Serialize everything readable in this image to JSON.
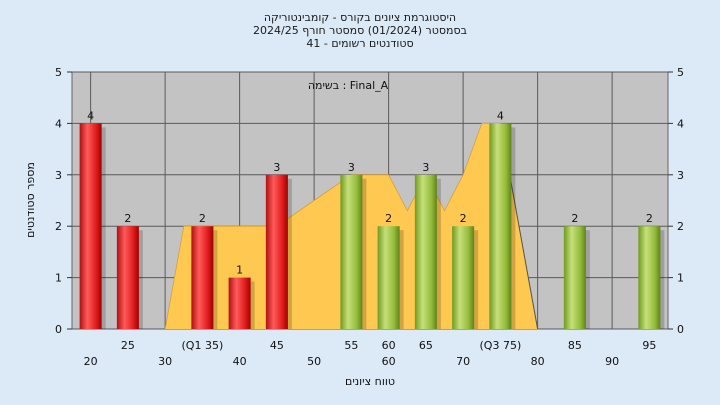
{
  "header": {
    "title_line1": "היסטוגרמת ציונים בקורס - קומבינטוריקה",
    "title_line2": "בסמסטר  (01/2024)  סמסטר חורף 2024/25",
    "title_line3": "41 - סטודנטים רשומים"
  },
  "chart_data": {
    "type": "bar",
    "ylabel": "מספר סטודנטים",
    "xlabel": "טווח ציונים",
    "annotation": "בשימה : Final_A",
    "ylim": [
      0,
      5
    ],
    "yticks": [
      0,
      1,
      2,
      3,
      4,
      5
    ],
    "xlim": [
      17.5,
      97.5
    ],
    "grid": true,
    "x_upper_ticks": [
      "25",
      "(Q1 35)",
      "45",
      "55",
      "60",
      "65",
      "(Q3 75)",
      "85",
      "95"
    ],
    "x_upper_tick_positions": [
      25,
      35,
      45,
      55,
      60,
      65,
      75,
      85,
      95
    ],
    "x_lower_ticks": [
      "20",
      "30",
      "40",
      "50",
      "60",
      "70",
      "80",
      "90"
    ],
    "x_lower_tick_positions": [
      20,
      30,
      40,
      50,
      60,
      70,
      80,
      90
    ],
    "bars": [
      {
        "x": 20,
        "value": 4,
        "color": "red"
      },
      {
        "x": 25,
        "value": 2,
        "color": "red"
      },
      {
        "x": 35,
        "value": 2,
        "color": "red"
      },
      {
        "x": 40,
        "value": 1,
        "color": "red"
      },
      {
        "x": 45,
        "value": 3,
        "color": "red"
      },
      {
        "x": 55,
        "value": 3,
        "color": "green"
      },
      {
        "x": 60,
        "value": 2,
        "color": "green"
      },
      {
        "x": 65,
        "value": 3,
        "color": "green"
      },
      {
        "x": 70,
        "value": 2,
        "color": "green"
      },
      {
        "x": 75,
        "value": 4,
        "color": "green"
      },
      {
        "x": 85,
        "value": 2,
        "color": "green"
      },
      {
        "x": 95,
        "value": 2,
        "color": "green"
      }
    ],
    "distribution_area": [
      [
        30,
        0
      ],
      [
        32.5,
        2
      ],
      [
        37.5,
        2
      ],
      [
        40,
        2
      ],
      [
        42.5,
        2
      ],
      [
        45,
        2
      ],
      [
        50,
        2.5
      ],
      [
        55,
        3
      ],
      [
        57.5,
        3
      ],
      [
        60,
        3
      ],
      [
        62.5,
        2.3
      ],
      [
        65,
        3
      ],
      [
        67.5,
        2.3
      ],
      [
        70,
        3
      ],
      [
        72.5,
        4
      ],
      [
        75,
        4
      ],
      [
        80,
        0
      ]
    ],
    "colors": {
      "red": "#e02020",
      "green": "#9cc43c",
      "area": "#ffc850",
      "plot_bg": "#c3c3c3",
      "grid": "#5a5a5a",
      "page_bg": "#dce9f7"
    }
  }
}
